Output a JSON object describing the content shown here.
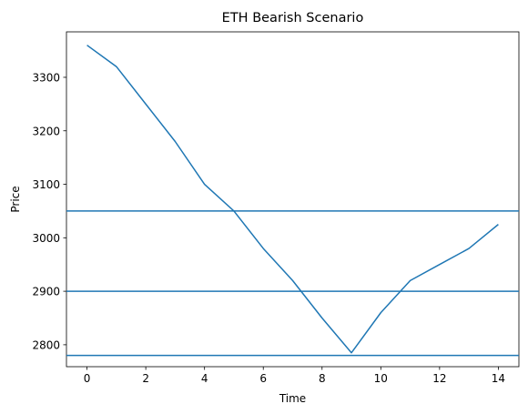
{
  "chart_data": {
    "type": "line",
    "title": "ETH Bearish Scenario",
    "xlabel": "Time",
    "ylabel": "Price",
    "xlim": [
      -0.7,
      14.7
    ],
    "ylim": [
      2759,
      3385
    ],
    "xticks": [
      0,
      2,
      4,
      6,
      8,
      10,
      12,
      14
    ],
    "yticks": [
      2800,
      2900,
      3000,
      3100,
      3200,
      3300
    ],
    "grid": false,
    "series": [
      {
        "x": [
          0,
          1,
          2,
          3,
          4,
          5,
          6,
          7,
          8,
          9,
          10,
          11,
          12,
          13,
          14
        ],
        "values": [
          3360,
          3320,
          3250,
          3180,
          3100,
          3050,
          2980,
          2920,
          2850,
          2785,
          2860,
          2920,
          2950,
          2980,
          3025
        ],
        "color": "#1f77b4"
      }
    ],
    "hlines": [
      {
        "y": 3050,
        "color": "#1f77b4"
      },
      {
        "y": 2900,
        "color": "#1f77b4"
      },
      {
        "y": 2780,
        "color": "#1f77b4"
      }
    ]
  }
}
